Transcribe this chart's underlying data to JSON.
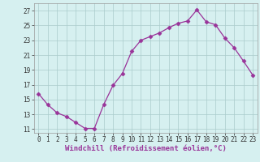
{
  "x": [
    0,
    1,
    2,
    3,
    4,
    5,
    6,
    7,
    8,
    9,
    10,
    11,
    12,
    13,
    14,
    15,
    16,
    17,
    18,
    19,
    20,
    21,
    22,
    23
  ],
  "y": [
    15.8,
    14.3,
    13.2,
    12.7,
    11.9,
    11.1,
    11.1,
    14.3,
    16.9,
    18.5,
    21.5,
    23.0,
    23.5,
    24.0,
    24.7,
    25.3,
    25.6,
    27.1,
    25.5,
    25.1,
    23.3,
    22.0,
    20.2,
    18.3
  ],
  "line_color": "#993399",
  "marker": "D",
  "marker_size": 2.5,
  "bg_color": "#d6f0f0",
  "grid_color": "#aacccc",
  "xlabel": "Windchill (Refroidissement éolien,°C)",
  "xlabel_fontsize": 6.5,
  "ylabel_ticks": [
    11,
    13,
    15,
    17,
    19,
    21,
    23,
    25,
    27
  ],
  "xlim": [
    -0.5,
    23.5
  ],
  "ylim": [
    10.5,
    28.0
  ],
  "tick_fontsize": 5.5
}
